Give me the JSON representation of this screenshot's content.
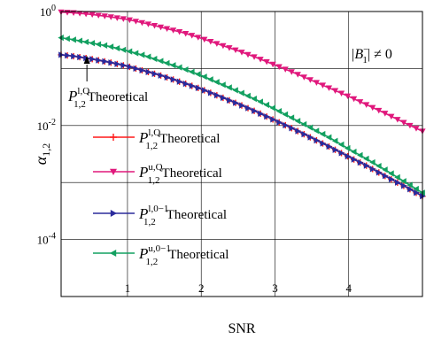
{
  "chart_data": {
    "type": "line",
    "title": "",
    "xlabel": "SNR",
    "ylabel": "α",
    "ylabel_sub": "1,2",
    "xlim": [
      0.1,
      5.0
    ],
    "ylim_log10": [
      -5,
      0
    ],
    "y_scale": "log",
    "grid": true,
    "x_ticks": [
      {
        "value": 1,
        "label": "1"
      },
      {
        "value": 2,
        "label": "2"
      },
      {
        "value": 3,
        "label": "3"
      },
      {
        "value": 4,
        "label": "4"
      }
    ],
    "y_ticks": [
      {
        "exp": 0,
        "base": "10",
        "sup": "0"
      },
      {
        "exp": -2,
        "base": "10",
        "sup": "-2"
      },
      {
        "exp": -4,
        "base": "10",
        "sup": "-4"
      }
    ],
    "annotation_box": {
      "text": "|B",
      "sup": "−",
      "sub": "1",
      "tail": "| ≠ 0"
    },
    "arrow_label": {
      "base": "P",
      "sup": "l,Q",
      "sub": "1,2",
      "tail": "Theoretical"
    },
    "legend_placement": "center-left",
    "series": [
      {
        "name": "P_{1,2}^{l,Q} Theoretical",
        "legend": {
          "base": "P",
          "sup": "l,Q",
          "sub": "1,2",
          "tail": "Theoretical"
        },
        "color": "#ff1a1a",
        "marker": "plus",
        "x": [
          0.1,
          0.25,
          0.5,
          0.75,
          1.0,
          1.25,
          1.5,
          1.75,
          2.0,
          2.25,
          2.5,
          2.75,
          3.0,
          3.25,
          3.5,
          3.75,
          4.0,
          4.25,
          4.5,
          4.75,
          5.0
        ],
        "y_log10": [
          -0.76,
          -0.78,
          -0.83,
          -0.89,
          -0.96,
          -1.05,
          -1.14,
          -1.25,
          -1.36,
          -1.49,
          -1.62,
          -1.76,
          -1.91,
          -2.06,
          -2.22,
          -2.38,
          -2.55,
          -2.71,
          -2.89,
          -3.06,
          -3.24
        ]
      },
      {
        "name": "P_{1,2}^{u,Q} Theoretical",
        "legend": {
          "base": "P",
          "sup": "u,Q",
          "sub": "1,2",
          "tail": "Theoretical"
        },
        "color": "#e0187c",
        "marker": "triangle-down",
        "x": [
          0.1,
          0.25,
          0.5,
          0.75,
          1.0,
          1.25,
          1.5,
          1.75,
          2.0,
          2.25,
          2.5,
          2.75,
          3.0,
          3.25,
          3.5,
          3.75,
          4.0,
          4.25,
          4.5,
          4.75,
          5.0
        ],
        "y_log10": [
          -0.01,
          -0.02,
          -0.05,
          -0.09,
          -0.14,
          -0.21,
          -0.29,
          -0.37,
          -0.47,
          -0.58,
          -0.69,
          -0.81,
          -0.94,
          -1.07,
          -1.21,
          -1.35,
          -1.49,
          -1.64,
          -1.79,
          -1.95,
          -2.1
        ]
      },
      {
        "name": "P_{1,2}^{l,0-1} Theoretical",
        "legend": {
          "base": "P",
          "sup": "l,0−1",
          "sub": "1,2",
          "tail": "Theoretical"
        },
        "color": "#2b2b9c",
        "marker": "triangle-right",
        "x": [
          0.1,
          0.25,
          0.5,
          0.75,
          1.0,
          1.25,
          1.5,
          1.75,
          2.0,
          2.25,
          2.5,
          2.75,
          3.0,
          3.25,
          3.5,
          3.75,
          4.0,
          4.25,
          4.5,
          4.75,
          5.0
        ],
        "y_log10": [
          -0.76,
          -0.78,
          -0.83,
          -0.89,
          -0.96,
          -1.05,
          -1.14,
          -1.25,
          -1.36,
          -1.49,
          -1.62,
          -1.76,
          -1.91,
          -2.06,
          -2.22,
          -2.38,
          -2.55,
          -2.71,
          -2.89,
          -3.06,
          -3.24
        ]
      },
      {
        "name": "P_{1,2}^{u,0-1} Theoretical",
        "legend": {
          "base": "P",
          "sup": "u,0−1",
          "sub": "1,2",
          "tail": "Theoretical"
        },
        "color": "#12a060",
        "marker": "triangle-left",
        "x": [
          0.1,
          0.25,
          0.5,
          0.75,
          1.0,
          1.25,
          1.5,
          1.75,
          2.0,
          2.25,
          2.5,
          2.75,
          3.0,
          3.25,
          3.5,
          3.75,
          4.0,
          4.25,
          4.5,
          4.75,
          5.0
        ],
        "y_log10": [
          -0.46,
          -0.49,
          -0.55,
          -0.61,
          -0.69,
          -0.78,
          -0.89,
          -1.0,
          -1.12,
          -1.26,
          -1.4,
          -1.55,
          -1.71,
          -1.88,
          -2.05,
          -2.22,
          -2.41,
          -2.59,
          -2.78,
          -2.98,
          -3.18
        ]
      }
    ]
  }
}
